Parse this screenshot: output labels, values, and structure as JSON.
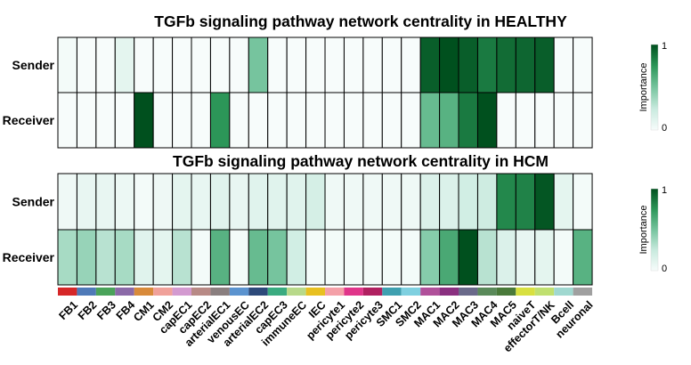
{
  "chart_data": [
    {
      "type": "heatmap",
      "title": "TGFb signaling pathway network centrality in HEALTHY",
      "rows": [
        "Sender",
        "Receiver"
      ],
      "columns": [
        "FB1",
        "FB2",
        "FB3",
        "FB4",
        "CM1",
        "CM2",
        "capEC1",
        "capEC2",
        "arterialEC1",
        "venousEC",
        "arterialEC2",
        "capEC3",
        "immuneEC",
        "IEC",
        "pericyte1",
        "pericyte2",
        "pericyte3",
        "SMC1",
        "SMC2",
        "MAC1",
        "MAC2",
        "MAC3",
        "MAC4",
        "MAC5",
        "naiveT",
        "effectorT/NK",
        "Bcell",
        "neuronal"
      ],
      "values": [
        [
          0.02,
          0,
          0,
          0.1,
          0,
          0,
          0,
          0,
          0,
          0,
          0.5,
          0,
          0,
          0,
          0,
          0,
          0,
          0,
          0,
          0.95,
          1.0,
          0.95,
          0.85,
          0.9,
          0.92,
          0.95,
          0,
          0
        ],
        [
          0,
          0,
          0,
          0,
          1.0,
          0,
          0,
          0,
          0.75,
          0,
          0,
          0,
          0,
          0,
          0,
          0,
          0,
          0,
          0,
          0.55,
          0.6,
          0.85,
          1.0,
          0,
          0,
          0,
          0,
          0
        ]
      ],
      "legend": {
        "label": "Importance",
        "min": "0",
        "max": "1"
      }
    },
    {
      "type": "heatmap",
      "title": "TGFb signaling pathway network centrality in HCM",
      "rows": [
        "Sender",
        "Receiver"
      ],
      "columns": [
        "FB1",
        "FB2",
        "FB3",
        "FB4",
        "CM1",
        "CM2",
        "capEC1",
        "capEC2",
        "arterialEC1",
        "venousEC",
        "arterialEC2",
        "capEC3",
        "immuneEC",
        "IEC",
        "pericyte1",
        "pericyte2",
        "pericyte3",
        "SMC1",
        "SMC2",
        "MAC1",
        "MAC2",
        "MAC3",
        "MAC4",
        "MAC5",
        "naiveT",
        "effectorT/NK",
        "Bcell",
        "neuronal"
      ],
      "values": [
        [
          0.04,
          0.08,
          0.08,
          0.06,
          0.02,
          0.05,
          0.1,
          0.08,
          0.12,
          0.08,
          0.12,
          0.12,
          0.12,
          0.18,
          0.04,
          0.04,
          0.04,
          0.04,
          0.04,
          0.15,
          0.15,
          0.2,
          0.22,
          0.8,
          0.82,
          0.98,
          0.1,
          0.02
        ],
        [
          0.35,
          0.4,
          0.3,
          0.35,
          0.12,
          0.1,
          0.3,
          0.02,
          0.6,
          0.02,
          0.55,
          0.5,
          0.2,
          0.02,
          0.02,
          0.02,
          0.02,
          0.02,
          0.02,
          0.45,
          0.65,
          1.0,
          0.3,
          0.15,
          0.08,
          0.1,
          0.02,
          0.6
        ]
      ],
      "legend": {
        "label": "Importance",
        "min": "0",
        "max": "1"
      }
    }
  ],
  "column_colors": [
    "#d62728",
    "#4f7ab8",
    "#4aa35a",
    "#8b6aa8",
    "#d88a3a",
    "#f0a19a",
    "#d39ad0",
    "#b88a86",
    "#8a7f7f",
    "#5b93cf",
    "#2d4a7a",
    "#3aab80",
    "#b8d98a",
    "#e8c020",
    "#f4a0a8",
    "#e0358a",
    "#b02060",
    "#3fa0b0",
    "#7fd0e0",
    "#b0509a",
    "#8a3080",
    "#6a6a8a",
    "#5a8a5a",
    "#4a7a3a",
    "#d8e040",
    "#c0e070",
    "#a0d8d0",
    "#a0a0a0"
  ]
}
